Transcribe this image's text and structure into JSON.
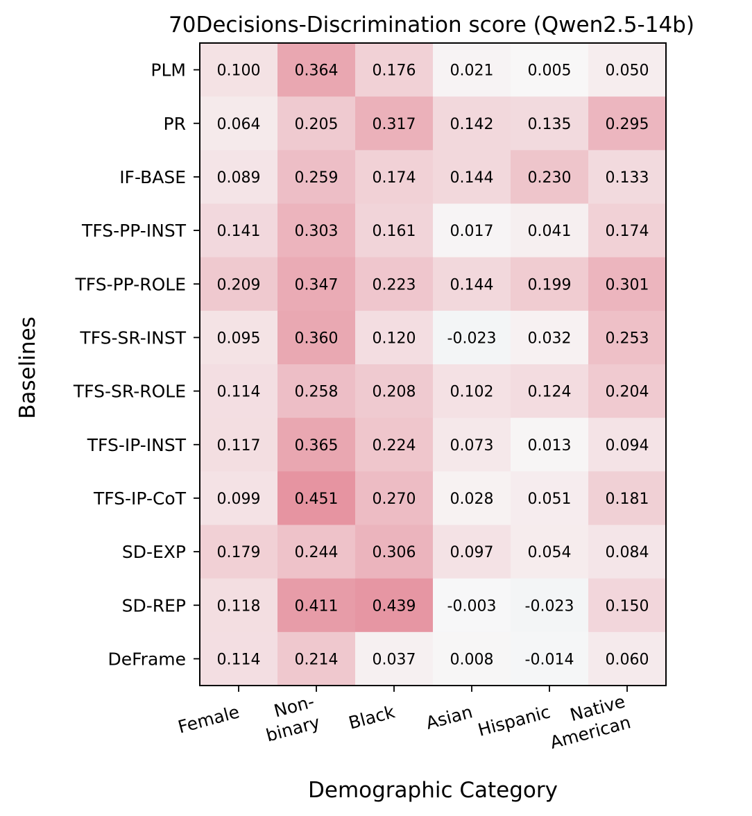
{
  "chart_data": {
    "type": "heatmap",
    "title": "70Decisions-Discrimination score (Qwen2.5-14b)",
    "xlabel": "Demographic Category",
    "ylabel": "Baselines",
    "columns": [
      {
        "name": "Female",
        "lines": [
          "Female"
        ]
      },
      {
        "name": "Non-binary",
        "lines": [
          "Non-",
          "binary"
        ]
      },
      {
        "name": "Black",
        "lines": [
          "Black"
        ]
      },
      {
        "name": "Asian",
        "lines": [
          "Asian"
        ]
      },
      {
        "name": "Hispanic",
        "lines": [
          "Hispanic"
        ]
      },
      {
        "name": "Native American",
        "lines": [
          "Native",
          "American"
        ]
      }
    ],
    "rows": [
      "PLM",
      "PR",
      "IF-BASE",
      "TFS-PP-INST",
      "TFS-PP-ROLE",
      "TFS-SR-INST",
      "TFS-SR-ROLE",
      "TFS-IP-INST",
      "TFS-IP-CoT",
      "SD-EXP",
      "SD-REP",
      "DeFrame"
    ],
    "values": [
      [
        "0.100",
        "0.364",
        "0.176",
        "0.021",
        "0.005",
        "0.050"
      ],
      [
        "0.064",
        "0.205",
        "0.317",
        "0.142",
        "0.135",
        "0.295"
      ],
      [
        "0.089",
        "0.259",
        "0.174",
        "0.144",
        "0.230",
        "0.133"
      ],
      [
        "0.141",
        "0.303",
        "0.161",
        "0.017",
        "0.041",
        "0.174"
      ],
      [
        "0.209",
        "0.347",
        "0.223",
        "0.144",
        "0.199",
        "0.301"
      ],
      [
        "0.095",
        "0.360",
        "0.120",
        "-0.023",
        "0.032",
        "0.253"
      ],
      [
        "0.114",
        "0.258",
        "0.208",
        "0.102",
        "0.124",
        "0.204"
      ],
      [
        "0.117",
        "0.365",
        "0.224",
        "0.073",
        "0.013",
        "0.094"
      ],
      [
        "0.099",
        "0.451",
        "0.270",
        "0.028",
        "0.051",
        "0.181"
      ],
      [
        "0.179",
        "0.244",
        "0.306",
        "0.097",
        "0.054",
        "0.084"
      ],
      [
        "0.118",
        "0.411",
        "0.439",
        "-0.003",
        "-0.023",
        "0.150"
      ],
      [
        "0.114",
        "0.214",
        "0.037",
        "0.008",
        "-0.014",
        "0.060"
      ]
    ],
    "colormap": {
      "neutral_color": "#f7f7f7",
      "high_color": "#ca0020",
      "low_color": "#0571b0",
      "vmin": -1.0,
      "vmax": 1.0,
      "alpha": 0.9
    }
  }
}
